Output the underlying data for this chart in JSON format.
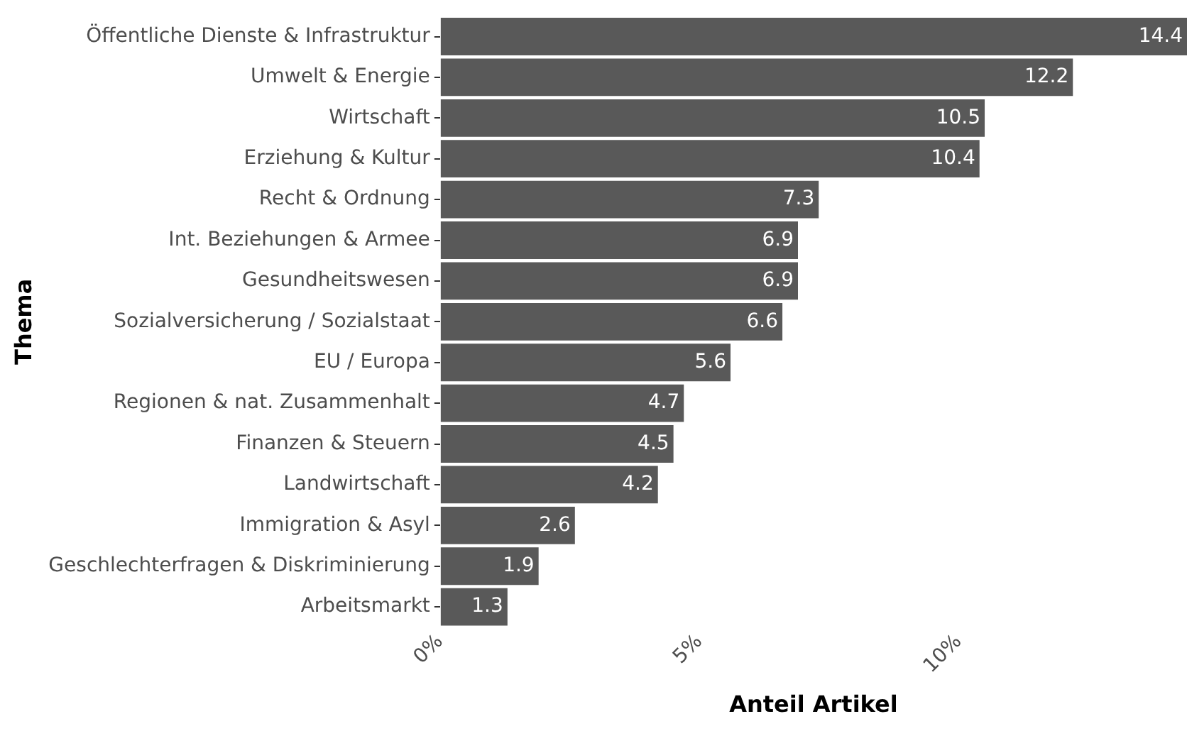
{
  "chart_data": {
    "type": "bar",
    "orientation": "horizontal",
    "xlabel": "Anteil Artikel",
    "ylabel": "Thema",
    "categories": [
      "Öffentliche Dienste & Infrastruktur",
      "Umwelt & Energie",
      "Wirtschaft",
      "Erziehung & Kultur",
      "Recht & Ordnung",
      "Int. Beziehungen & Armee",
      "Gesundheitswesen",
      "Sozialversicherung / Sozialstaat",
      "EU / Europa",
      "Regionen & nat. Zusammenhalt",
      "Finanzen & Steuern",
      "Landwirtschaft",
      "Immigration & Asyl",
      "Geschlechterfragen & Diskriminierung",
      "Arbeitsmarkt"
    ],
    "values": [
      14.4,
      12.2,
      10.5,
      10.4,
      7.3,
      6.9,
      6.9,
      6.6,
      5.6,
      4.7,
      4.5,
      4.2,
      2.6,
      1.9,
      1.3
    ],
    "color": "#595959",
    "xlim": [
      0,
      14.4
    ],
    "xticks": [
      {
        "value": 0,
        "label": "0%"
      },
      {
        "value": 5,
        "label": "5%"
      },
      {
        "value": 10,
        "label": "10%"
      }
    ],
    "data_labels": true,
    "grid": false,
    "legend": false
  }
}
